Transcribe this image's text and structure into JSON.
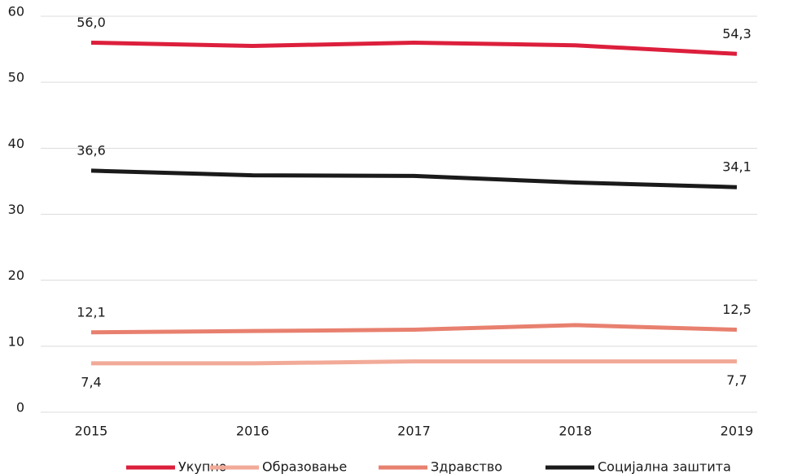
{
  "chart_data": {
    "type": "line",
    "categories": [
      "2015",
      "2016",
      "2017",
      "2018",
      "2019"
    ],
    "series": [
      {
        "name": "Укупно",
        "color": "#dc1f3c",
        "values": [
          56.0,
          55.5,
          56.0,
          55.6,
          54.3
        ],
        "value_labels": [
          "56,0",
          null,
          null,
          null,
          "54,3"
        ]
      },
      {
        "name": "Образовање",
        "color": "#f2aa98",
        "values": [
          7.4,
          7.4,
          7.7,
          7.7,
          7.7
        ],
        "value_labels": [
          "7,4",
          null,
          null,
          null,
          "7,7"
        ]
      },
      {
        "name": "Здравство",
        "color": "#e8806f",
        "values": [
          12.1,
          12.3,
          12.5,
          13.2,
          12.5
        ],
        "value_labels": [
          "12,1",
          null,
          null,
          null,
          "12,5"
        ]
      },
      {
        "name": "Социјална заштита",
        "color": "#1a1a1a",
        "values": [
          36.6,
          35.9,
          35.8,
          34.8,
          34.1
        ],
        "value_labels": [
          "36,6",
          null,
          null,
          null,
          "34,1"
        ]
      }
    ],
    "ylim": [
      0,
      60
    ],
    "yticks": [
      0,
      10,
      20,
      30,
      40,
      50,
      60
    ],
    "grid": true,
    "legend": "bottom"
  }
}
